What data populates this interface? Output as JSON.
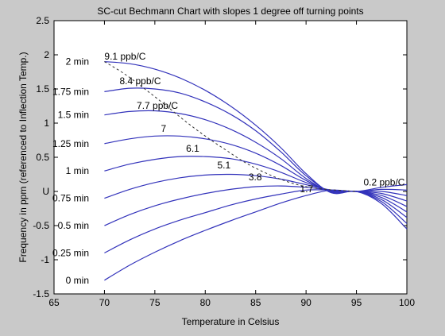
{
  "chart_data": {
    "type": "line",
    "title": "SC-cut Bechmann Chart with slopes 1 degree off turning points",
    "xlabel": "Temperature in Celsius",
    "ylabel": "Frequency in ppm (referenced to Inflection Temp.)",
    "xlim": [
      65,
      100
    ],
    "ylim": [
      -1.5,
      2.5
    ],
    "x_ticks": [
      "65",
      "70",
      "75",
      "80",
      "85",
      "90",
      "95",
      "100"
    ],
    "y_ticks": [
      "-1.5",
      "-1",
      "-0.5",
      "U",
      "0.5",
      "1",
      "1.5",
      "2",
      "2.5"
    ],
    "grid": false,
    "series_color": "#3333bb",
    "dashed_color": "#333333",
    "x": [
      70,
      72.5,
      75,
      77.5,
      80,
      82.5,
      85,
      87.5,
      90,
      92.5,
      95,
      97.5,
      100
    ],
    "series": [
      {
        "label": "2 min",
        "values": [
          1.9,
          1.87,
          1.79,
          1.66,
          1.48,
          1.25,
          0.97,
          0.64,
          0.26,
          -0.02,
          0.0,
          -0.18,
          -0.55
        ]
      },
      {
        "label": "1.75 min",
        "values": [
          1.46,
          1.51,
          1.5,
          1.44,
          1.31,
          1.13,
          0.89,
          0.58,
          0.23,
          -0.01,
          0.0,
          -0.15,
          -0.47
        ]
      },
      {
        "label": "1.5 min",
        "values": [
          1.12,
          1.17,
          1.18,
          1.14,
          1.05,
          0.91,
          0.72,
          0.48,
          0.19,
          -0.01,
          0.0,
          -0.12,
          -0.38
        ]
      },
      {
        "label": "1.25 min",
        "values": [
          0.7,
          0.77,
          0.81,
          0.81,
          0.77,
          0.69,
          0.56,
          0.38,
          0.16,
          0.0,
          0.0,
          -0.09,
          -0.3
        ]
      },
      {
        "label": "1 min",
        "values": [
          0.3,
          0.4,
          0.47,
          0.51,
          0.51,
          0.48,
          0.4,
          0.28,
          0.13,
          0.01,
          0.0,
          -0.06,
          -0.22
        ]
      },
      {
        "label": "0.75 min",
        "values": [
          -0.1,
          0.03,
          0.13,
          0.2,
          0.24,
          0.25,
          0.23,
          0.18,
          0.1,
          0.02,
          0.0,
          -0.03,
          -0.14
        ]
      },
      {
        "label": "0.5 min",
        "values": [
          -0.5,
          -0.34,
          -0.21,
          -0.11,
          -0.03,
          0.03,
          0.07,
          0.08,
          0.06,
          0.02,
          0.0,
          0.0,
          -0.06
        ]
      },
      {
        "label": "0.25 min",
        "values": [
          -0.9,
          -0.71,
          -0.55,
          -0.42,
          -0.31,
          -0.2,
          -0.11,
          -0.04,
          0.02,
          0.02,
          0.0,
          0.03,
          0.02
        ]
      },
      {
        "label": "0 min",
        "values": [
          -1.3,
          -1.08,
          -0.89,
          -0.72,
          -0.57,
          -0.43,
          -0.3,
          -0.17,
          -0.06,
          0.02,
          0.0,
          0.06,
          0.1
        ]
      }
    ],
    "slope_line": {
      "x": [
        70,
        72,
        74,
        76,
        78,
        80,
        82,
        84,
        86,
        88,
        90,
        92,
        94,
        95
      ],
      "values": [
        1.9,
        1.72,
        1.5,
        1.27,
        1.03,
        0.81,
        0.61,
        0.42,
        0.27,
        0.15,
        0.07,
        0.03,
        0.01,
        0.0
      ]
    },
    "slope_labels": [
      {
        "text": "9.1 ppb/C",
        "x": 70.0,
        "y": 1.93
      },
      {
        "text": "8.4 ppb/C",
        "x": 71.5,
        "y": 1.57
      },
      {
        "text": "7.7 ppb/C",
        "x": 73.2,
        "y": 1.21
      },
      {
        "text": "7",
        "x": 75.6,
        "y": 0.87
      },
      {
        "text": "6.1",
        "x": 78.1,
        "y": 0.58
      },
      {
        "text": "5.1",
        "x": 81.2,
        "y": 0.34
      },
      {
        "text": "3.8",
        "x": 84.3,
        "y": 0.16
      },
      {
        "text": "1.7",
        "x": 89.4,
        "y": -0.01
      },
      {
        "text": "0.2 ppb/C",
        "x": 95.7,
        "y": 0.09
      }
    ]
  }
}
